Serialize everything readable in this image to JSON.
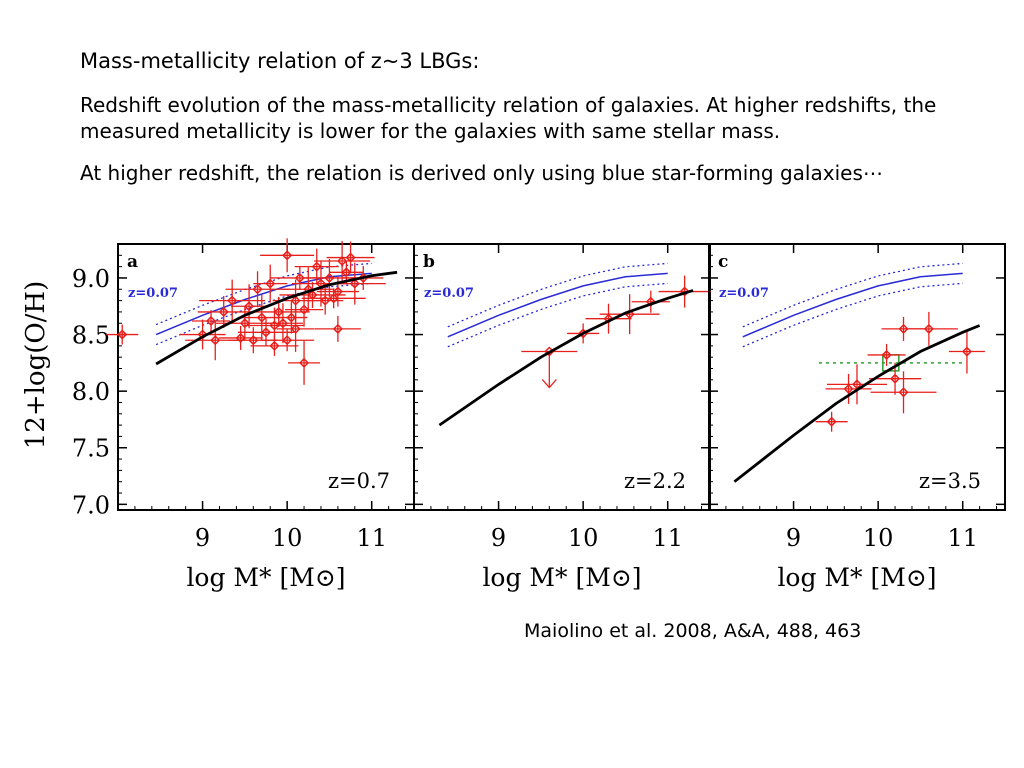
{
  "slide": {
    "heading": "Mass-metallicity relation of z~3 LBGs:",
    "paragraph1": "Redshift evolution of the mass-metallicity relation of galaxies. At higher redshifts, the measured metallicity is lower for the galaxies with same stellar mass.",
    "paragraph2": "At higher redshift, the relation is derived only using blue star-forming galaxies⋯",
    "citation": "Maiolino et al. 2008, A&A, 488, 463"
  },
  "colors": {
    "data_points": "#e8201c",
    "local_relation": "#2a2ad6",
    "fit_curve": "#000000",
    "lbg_stack": "#2e9e2e"
  },
  "chart_data": [
    {
      "type": "scatter",
      "panel_label": "a",
      "redshift_label": "z=0.7",
      "reference_label": "z=0.07",
      "xlabel": "log M* [M⊙]",
      "ylabel": "12+log(O/H)",
      "xlim": [
        8.0,
        11.5
      ],
      "ylim": [
        6.95,
        9.3
      ],
      "xticks": [
        "9",
        "10",
        "11"
      ],
      "yticks": [
        "7.0",
        "7.5",
        "8.0",
        "8.5",
        "9.0"
      ],
      "points": [
        {
          "x": 8.05,
          "y": 8.5
        },
        {
          "x": 9.0,
          "y": 8.5
        },
        {
          "x": 9.15,
          "y": 8.45
        },
        {
          "x": 9.1,
          "y": 8.62
        },
        {
          "x": 9.25,
          "y": 8.7
        },
        {
          "x": 9.35,
          "y": 8.8
        },
        {
          "x": 9.45,
          "y": 8.47
        },
        {
          "x": 9.5,
          "y": 8.6
        },
        {
          "x": 9.55,
          "y": 8.75
        },
        {
          "x": 9.6,
          "y": 8.45
        },
        {
          "x": 9.65,
          "y": 8.9
        },
        {
          "x": 9.7,
          "y": 8.65
        },
        {
          "x": 9.75,
          "y": 8.52
        },
        {
          "x": 9.8,
          "y": 8.95
        },
        {
          "x": 9.85,
          "y": 8.4
        },
        {
          "x": 9.9,
          "y": 8.7
        },
        {
          "x": 9.95,
          "y": 8.6
        },
        {
          "x": 10.0,
          "y": 8.45
        },
        {
          "x": 10.05,
          "y": 8.65
        },
        {
          "x": 10.1,
          "y": 8.8
        },
        {
          "x": 10.15,
          "y": 9.0
        },
        {
          "x": 10.2,
          "y": 8.72
        },
        {
          "x": 10.25,
          "y": 8.9
        },
        {
          "x": 10.3,
          "y": 8.85
        },
        {
          "x": 10.35,
          "y": 9.1
        },
        {
          "x": 10.4,
          "y": 8.95
        },
        {
          "x": 10.45,
          "y": 8.8
        },
        {
          "x": 10.5,
          "y": 9.0
        },
        {
          "x": 10.55,
          "y": 8.82
        },
        {
          "x": 10.6,
          "y": 8.88
        },
        {
          "x": 10.65,
          "y": 9.15
        },
        {
          "x": 10.7,
          "y": 9.05
        },
        {
          "x": 10.75,
          "y": 9.18
        },
        {
          "x": 10.8,
          "y": 8.95
        },
        {
          "x": 10.9,
          "y": 9.0
        },
        {
          "x": 10.0,
          "y": 9.2
        },
        {
          "x": 10.2,
          "y": 8.25
        },
        {
          "x": 10.6,
          "y": 8.55
        },
        {
          "x": 9.85,
          "y": 8.58
        },
        {
          "x": 10.1,
          "y": 8.55
        }
      ],
      "fit": {
        "x": [
          8.45,
          9.0,
          9.5,
          10.0,
          10.5,
          11.0,
          11.3
        ],
        "y": [
          8.24,
          8.48,
          8.67,
          8.82,
          8.94,
          9.02,
          9.05
        ]
      },
      "reference": {
        "x": [
          8.45,
          9.0,
          9.5,
          10.0,
          10.5,
          11.0
        ],
        "y": [
          8.5,
          8.67,
          8.81,
          8.93,
          9.01,
          9.04
        ]
      }
    },
    {
      "type": "scatter",
      "panel_label": "b",
      "redshift_label": "z=2.2",
      "reference_label": "z=0.07",
      "xlabel": "log M* [M⊙]",
      "ylabel": "",
      "xlim": [
        8.0,
        11.5
      ],
      "ylim": [
        6.95,
        9.3
      ],
      "xticks": [
        "9",
        "10",
        "11"
      ],
      "yticks": [],
      "points": [
        {
          "x": 10.0,
          "y": 8.51
        },
        {
          "x": 10.3,
          "y": 8.64
        },
        {
          "x": 10.55,
          "y": 8.68
        },
        {
          "x": 10.8,
          "y": 8.79
        },
        {
          "x": 11.2,
          "y": 8.88
        }
      ],
      "upper_limits": [
        {
          "x": 9.6,
          "y": 8.35
        }
      ],
      "fit": {
        "x": [
          8.3,
          9.0,
          9.5,
          10.0,
          10.5,
          11.0,
          11.3
        ],
        "y": [
          7.7,
          8.06,
          8.3,
          8.51,
          8.69,
          8.82,
          8.89
        ]
      },
      "reference": {
        "x": [
          8.4,
          9.0,
          9.5,
          10.0,
          10.5,
          11.0
        ],
        "y": [
          8.48,
          8.67,
          8.81,
          8.93,
          9.01,
          9.04
        ]
      }
    },
    {
      "type": "scatter",
      "panel_label": "c",
      "redshift_label": "z=3.5",
      "reference_label": "z=0.07",
      "xlabel": "log M* [M⊙]",
      "ylabel": "",
      "xlim": [
        8.0,
        11.5
      ],
      "ylim": [
        6.95,
        9.3
      ],
      "xticks": [
        "9",
        "10",
        "11"
      ],
      "yticks": [],
      "points": [
        {
          "x": 9.45,
          "y": 7.73
        },
        {
          "x": 9.65,
          "y": 8.02
        },
        {
          "x": 9.75,
          "y": 8.06
        },
        {
          "x": 10.1,
          "y": 8.32
        },
        {
          "x": 10.2,
          "y": 8.11
        },
        {
          "x": 10.3,
          "y": 7.99
        },
        {
          "x": 10.3,
          "y": 8.55
        },
        {
          "x": 10.6,
          "y": 8.55
        },
        {
          "x": 11.05,
          "y": 8.35
        }
      ],
      "stack": {
        "x": 10.15,
        "y": 8.25
      },
      "fit": {
        "x": [
          8.3,
          9.0,
          9.5,
          10.0,
          10.5,
          11.0,
          11.2
        ],
        "y": [
          7.2,
          7.61,
          7.89,
          8.13,
          8.35,
          8.52,
          8.58
        ]
      },
      "reference": {
        "x": [
          8.4,
          9.0,
          9.5,
          10.0,
          10.5,
          11.0
        ],
        "y": [
          8.48,
          8.67,
          8.81,
          8.93,
          9.01,
          9.04
        ]
      }
    }
  ]
}
